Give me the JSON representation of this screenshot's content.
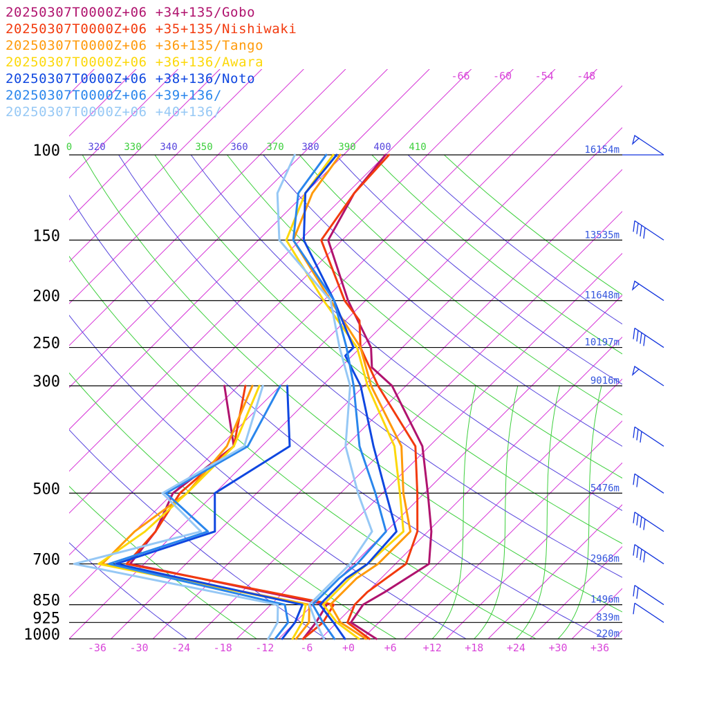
{
  "chart_data": {
    "type": "line",
    "title": "",
    "xlabel": "",
    "ylabel": "",
    "xlim": [
      -40,
      40
    ],
    "ylim": [
      1000,
      100
    ],
    "y_scale": "log-pressure (skew-T)",
    "pressure_labels": [
      "100",
      "150",
      "200",
      "250",
      "300",
      "500",
      "700",
      "850",
      "925",
      "1000"
    ],
    "pressure_values": [
      100,
      150,
      200,
      250,
      300,
      500,
      700,
      850,
      925,
      1000
    ],
    "height_labels": [
      {
        "p": 100,
        "text": "16154m"
      },
      {
        "p": 150,
        "text": "13535m"
      },
      {
        "p": 200,
        "text": "11648m"
      },
      {
        "p": 250,
        "text": "10197m"
      },
      {
        "p": 300,
        "text": "9016m"
      },
      {
        "p": 500,
        "text": "5476m"
      },
      {
        "p": 700,
        "text": "2968m"
      },
      {
        "p": 850,
        "text": "1496m"
      },
      {
        "p": 925,
        "text": "839m"
      },
      {
        "p": 1000,
        "text": "220m"
      }
    ],
    "temperature_ticks": [
      {
        "t": -36,
        "text": "-36"
      },
      {
        "t": -30,
        "text": "-30"
      },
      {
        "t": -24,
        "text": "-24"
      },
      {
        "t": -18,
        "text": "-18"
      },
      {
        "t": -12,
        "text": "-12"
      },
      {
        "t": -6,
        "text": "-6"
      },
      {
        "t": 0,
        "text": "+0"
      },
      {
        "t": 6,
        "text": "+6"
      },
      {
        "t": 12,
        "text": "+12"
      },
      {
        "t": 18,
        "text": "+18"
      },
      {
        "t": 24,
        "text": "+24"
      },
      {
        "t": 30,
        "text": "+30"
      },
      {
        "t": 36,
        "text": "+36"
      }
    ],
    "upper_temperature_ticks": [
      {
        "t": -66,
        "text": "-66"
      },
      {
        "t": -60,
        "text": "-60"
      },
      {
        "t": -54,
        "text": "-54"
      },
      {
        "t": -48,
        "text": "-48"
      }
    ],
    "theta_labels": [
      "0",
      "320",
      "330",
      "340",
      "350",
      "360",
      "370",
      "380",
      "390",
      "400",
      "410"
    ],
    "grid": true,
    "legend_position": "top-left",
    "series": [
      {
        "name": "20250307T0000Z+06 +34+135/Gobo",
        "color": "#b0136e",
        "temperature": [
          [
            1000,
            4.0
          ],
          [
            925,
            -2.0
          ],
          [
            850,
            -2.8
          ],
          [
            800,
            -1.5
          ],
          [
            700,
            0.8
          ],
          [
            600,
            -3.5
          ],
          [
            500,
            -9.5
          ],
          [
            400,
            -17.0
          ],
          [
            300,
            -30.0
          ],
          [
            275,
            -35.5
          ],
          [
            250,
            -38.5
          ],
          [
            200,
            -48.5
          ],
          [
            150,
            -60.0
          ],
          [
            120,
            -63.0
          ],
          [
            100,
            -64.0
          ]
        ],
        "dewpoint": [
          [
            1000,
            -6.5
          ],
          [
            925,
            -7.0
          ],
          [
            850,
            -8.0
          ],
          [
            700,
            -42.0
          ],
          [
            600,
            -43.0
          ],
          [
            500,
            -46.0
          ],
          [
            400,
            -44.0
          ],
          [
            300,
            -54.0
          ]
        ]
      },
      {
        "name": "20250307T0000Z+06 +35+135/Nishiwaki",
        "color": "#f23a0e",
        "temperature": [
          [
            1000,
            3.0
          ],
          [
            925,
            -2.5
          ],
          [
            850,
            -4.0
          ],
          [
            800,
            -4.0
          ],
          [
            700,
            -2.5
          ],
          [
            600,
            -5.5
          ],
          [
            500,
            -11.0
          ],
          [
            400,
            -18.0
          ],
          [
            300,
            -32.0
          ],
          [
            250,
            -40.0
          ],
          [
            220,
            -44.0
          ],
          [
            200,
            -49.0
          ],
          [
            150,
            -61.0
          ],
          [
            120,
            -63.0
          ],
          [
            100,
            -63.5
          ]
        ],
        "dewpoint": [
          [
            1000,
            -6.5
          ],
          [
            925,
            -6.0
          ],
          [
            850,
            -7.0
          ],
          [
            700,
            -42.5
          ],
          [
            600,
            -43.0
          ],
          [
            500,
            -45.0
          ],
          [
            400,
            -44.0
          ],
          [
            300,
            -51.0
          ]
        ]
      },
      {
        "name": "20250307T0000Z+06 +36+135/Tango",
        "color": "#ff9a0a",
        "temperature": [
          [
            1000,
            2.5
          ],
          [
            925,
            -3.5
          ],
          [
            850,
            -7.5
          ],
          [
            750,
            -7.5
          ],
          [
            700,
            -6.5
          ],
          [
            600,
            -6.5
          ],
          [
            500,
            -13.0
          ],
          [
            400,
            -20.0
          ],
          [
            300,
            -33.0
          ],
          [
            250,
            -40.0
          ],
          [
            200,
            -51.0
          ],
          [
            150,
            -65.0
          ],
          [
            120,
            -69.0
          ],
          [
            100,
            -70.5
          ]
        ],
        "dewpoint": [
          [
            1000,
            -7.5
          ],
          [
            925,
            -8.0
          ],
          [
            850,
            -10.5
          ],
          [
            700,
            -46.0
          ],
          [
            600,
            -46.0
          ],
          [
            500,
            -44.0
          ],
          [
            400,
            -45.0
          ],
          [
            300,
            -50.0
          ]
        ]
      },
      {
        "name": "20250307T0000Z+06 +36+136/Awara",
        "color": "#fcd80a",
        "temperature": [
          [
            1000,
            1.5
          ],
          [
            925,
            -4.0
          ],
          [
            850,
            -8.5
          ],
          [
            750,
            -8.5
          ],
          [
            700,
            -8.0
          ],
          [
            600,
            -7.5
          ],
          [
            500,
            -13.5
          ],
          [
            400,
            -21.0
          ],
          [
            300,
            -33.5
          ],
          [
            250,
            -40.5
          ],
          [
            200,
            -52.0
          ],
          [
            150,
            -66.0
          ],
          [
            120,
            -70.0
          ],
          [
            100,
            -71.5
          ]
        ],
        "dewpoint": [
          [
            1000,
            -8.0
          ],
          [
            925,
            -9.0
          ],
          [
            850,
            -11.0
          ],
          [
            700,
            -46.5
          ],
          [
            600,
            -44.5
          ],
          [
            500,
            -44.0
          ],
          [
            400,
            -44.0
          ],
          [
            300,
            -49.0
          ]
        ]
      },
      {
        "name": "20250307T0000Z+06 +38+136/Noto",
        "color": "#0f47e0",
        "temperature": [
          [
            1000,
            -0.5
          ],
          [
            925,
            -4.5
          ],
          [
            850,
            -9.0
          ],
          [
            750,
            -9.0
          ],
          [
            700,
            -8.0
          ],
          [
            600,
            -8.5
          ],
          [
            500,
            -15.5
          ],
          [
            400,
            -24.0
          ],
          [
            300,
            -34.5
          ],
          [
            260,
            -41.0
          ],
          [
            250,
            -41.0
          ],
          [
            200,
            -50.5
          ],
          [
            150,
            -63.5
          ],
          [
            120,
            -70.0
          ],
          [
            100,
            -71.0
          ]
        ],
        "dewpoint": [
          [
            1000,
            -9.5
          ],
          [
            925,
            -10.0
          ],
          [
            850,
            -11.5
          ],
          [
            700,
            -44.0
          ],
          [
            600,
            -34.5
          ],
          [
            500,
            -40.0
          ],
          [
            400,
            -36.0
          ],
          [
            300,
            -45.0
          ]
        ]
      },
      {
        "name": "20250307T0000Z+06 +39+136/",
        "color": "#2a86ec",
        "temperature": [
          [
            1000,
            -2.0
          ],
          [
            925,
            -6.0
          ],
          [
            850,
            -10.0
          ],
          [
            750,
            -10.0
          ],
          [
            700,
            -9.5
          ],
          [
            600,
            -10.0
          ],
          [
            500,
            -17.0
          ],
          [
            400,
            -26.0
          ],
          [
            300,
            -35.5
          ],
          [
            250,
            -42.0
          ],
          [
            200,
            -50.5
          ],
          [
            150,
            -65.0
          ],
          [
            120,
            -71.0
          ],
          [
            100,
            -72.5
          ]
        ],
        "dewpoint": [
          [
            1000,
            -10.5
          ],
          [
            925,
            -11.0
          ],
          [
            850,
            -14.0
          ],
          [
            700,
            -45.0
          ],
          [
            600,
            -35.5
          ],
          [
            500,
            -47.0
          ],
          [
            400,
            -42.0
          ],
          [
            300,
            -46.0
          ]
        ]
      },
      {
        "name": "20250307T0000Z+06 +40+136/",
        "color": "#96c8f5",
        "temperature": [
          [
            1000,
            -3.5
          ],
          [
            925,
            -7.0
          ],
          [
            850,
            -10.5
          ],
          [
            750,
            -10.5
          ],
          [
            700,
            -10.5
          ],
          [
            600,
            -12.0
          ],
          [
            500,
            -19.5
          ],
          [
            400,
            -28.0
          ],
          [
            300,
            -36.0
          ],
          [
            250,
            -43.0
          ],
          [
            200,
            -51.0
          ],
          [
            150,
            -67.0
          ],
          [
            120,
            -74.0
          ],
          [
            100,
            -77.0
          ]
        ],
        "dewpoint": [
          [
            1000,
            -11.5
          ],
          [
            925,
            -12.5
          ],
          [
            850,
            -15.0
          ],
          [
            700,
            -50.0
          ],
          [
            600,
            -36.5
          ],
          [
            500,
            -47.5
          ],
          [
            400,
            -42.5
          ],
          [
            300,
            -48.5
          ]
        ]
      }
    ],
    "wind_barbs": [
      {
        "p": 100,
        "flags": 1,
        "full": 0,
        "half": 0
      },
      {
        "p": 150,
        "flags": 0,
        "full": 4,
        "half": 0
      },
      {
        "p": 200,
        "flags": 1,
        "full": 0,
        "half": 0
      },
      {
        "p": 250,
        "flags": 0,
        "full": 4,
        "half": 0
      },
      {
        "p": 300,
        "flags": 1,
        "full": 0,
        "half": 0
      },
      {
        "p": 400,
        "flags": 0,
        "full": 3,
        "half": 0
      },
      {
        "p": 500,
        "flags": 0,
        "full": 2,
        "half": 0
      },
      {
        "p": 600,
        "flags": 0,
        "full": 4,
        "half": 0
      },
      {
        "p": 700,
        "flags": 0,
        "full": 4,
        "half": 0
      },
      {
        "p": 850,
        "flags": 0,
        "full": 2,
        "half": 0
      },
      {
        "p": 925,
        "flags": 0,
        "full": 1,
        "half": 0
      }
    ]
  }
}
